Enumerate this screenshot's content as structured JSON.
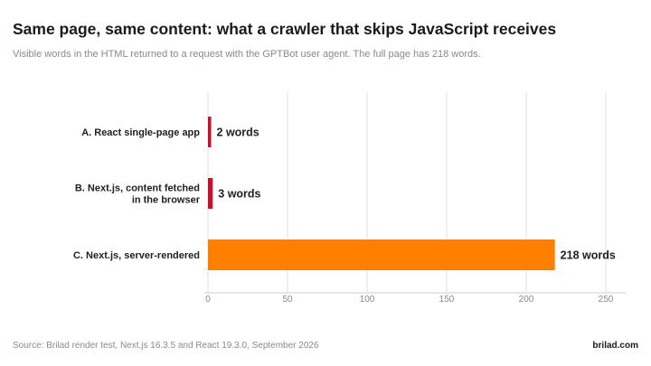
{
  "header": {
    "title": "Same page, same content: what a crawler that skips JavaScript receives",
    "subtitle": "Visible words in the HTML returned to a request with the GPTBot user agent. The full page has 218 words."
  },
  "footer": {
    "source": "Source: Brilad render test, Next.js 16.3.5 and React 19.3.0, September 2026",
    "brand": "brilad.com"
  },
  "chart_data": {
    "type": "bar",
    "orientation": "horizontal",
    "categories": [
      [
        "A. React single-page app"
      ],
      [
        "B. Next.js, content fetched",
        "in the browser"
      ],
      [
        "C. Next.js, server-rendered"
      ]
    ],
    "values": [
      2,
      3,
      218
    ],
    "data_labels": [
      "2 words",
      "3 words",
      "218 words"
    ],
    "colors": [
      "#c8102e",
      "#c8102e",
      "#ff7f00"
    ],
    "xlim": [
      0,
      250
    ],
    "xticks": [
      0,
      50,
      100,
      150,
      200,
      250
    ],
    "grid": true,
    "legend": false
  }
}
